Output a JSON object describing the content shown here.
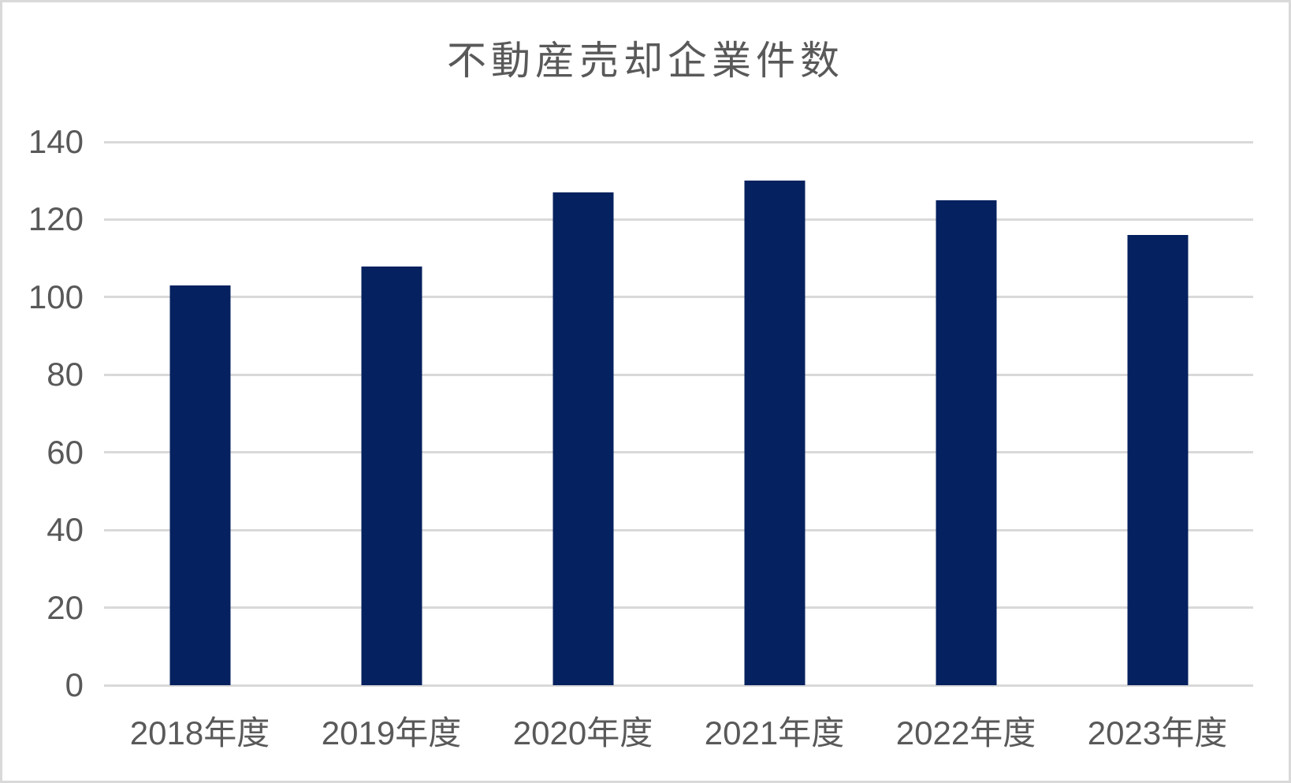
{
  "window": {
    "background_color": "#FFFFFF",
    "border_color": "#D9D9D9"
  },
  "chart_data": {
    "type": "bar",
    "title": "不動産売却企業件数",
    "categories": [
      "2018年度",
      "2019年度",
      "2020年度",
      "2021年度",
      "2022年度",
      "2023年度"
    ],
    "values": [
      103,
      108,
      127,
      130,
      125,
      116
    ],
    "xlabel": "",
    "ylabel": "",
    "ylim": [
      0,
      140
    ],
    "yticks": [
      0,
      20,
      40,
      60,
      80,
      100,
      120,
      140
    ],
    "grid": "horizontal",
    "legend_position": "none",
    "bar_color": "#05215F",
    "title_color": "#595959",
    "axis_text_color": "#595959",
    "gridline_color": "#D9D9D9"
  }
}
